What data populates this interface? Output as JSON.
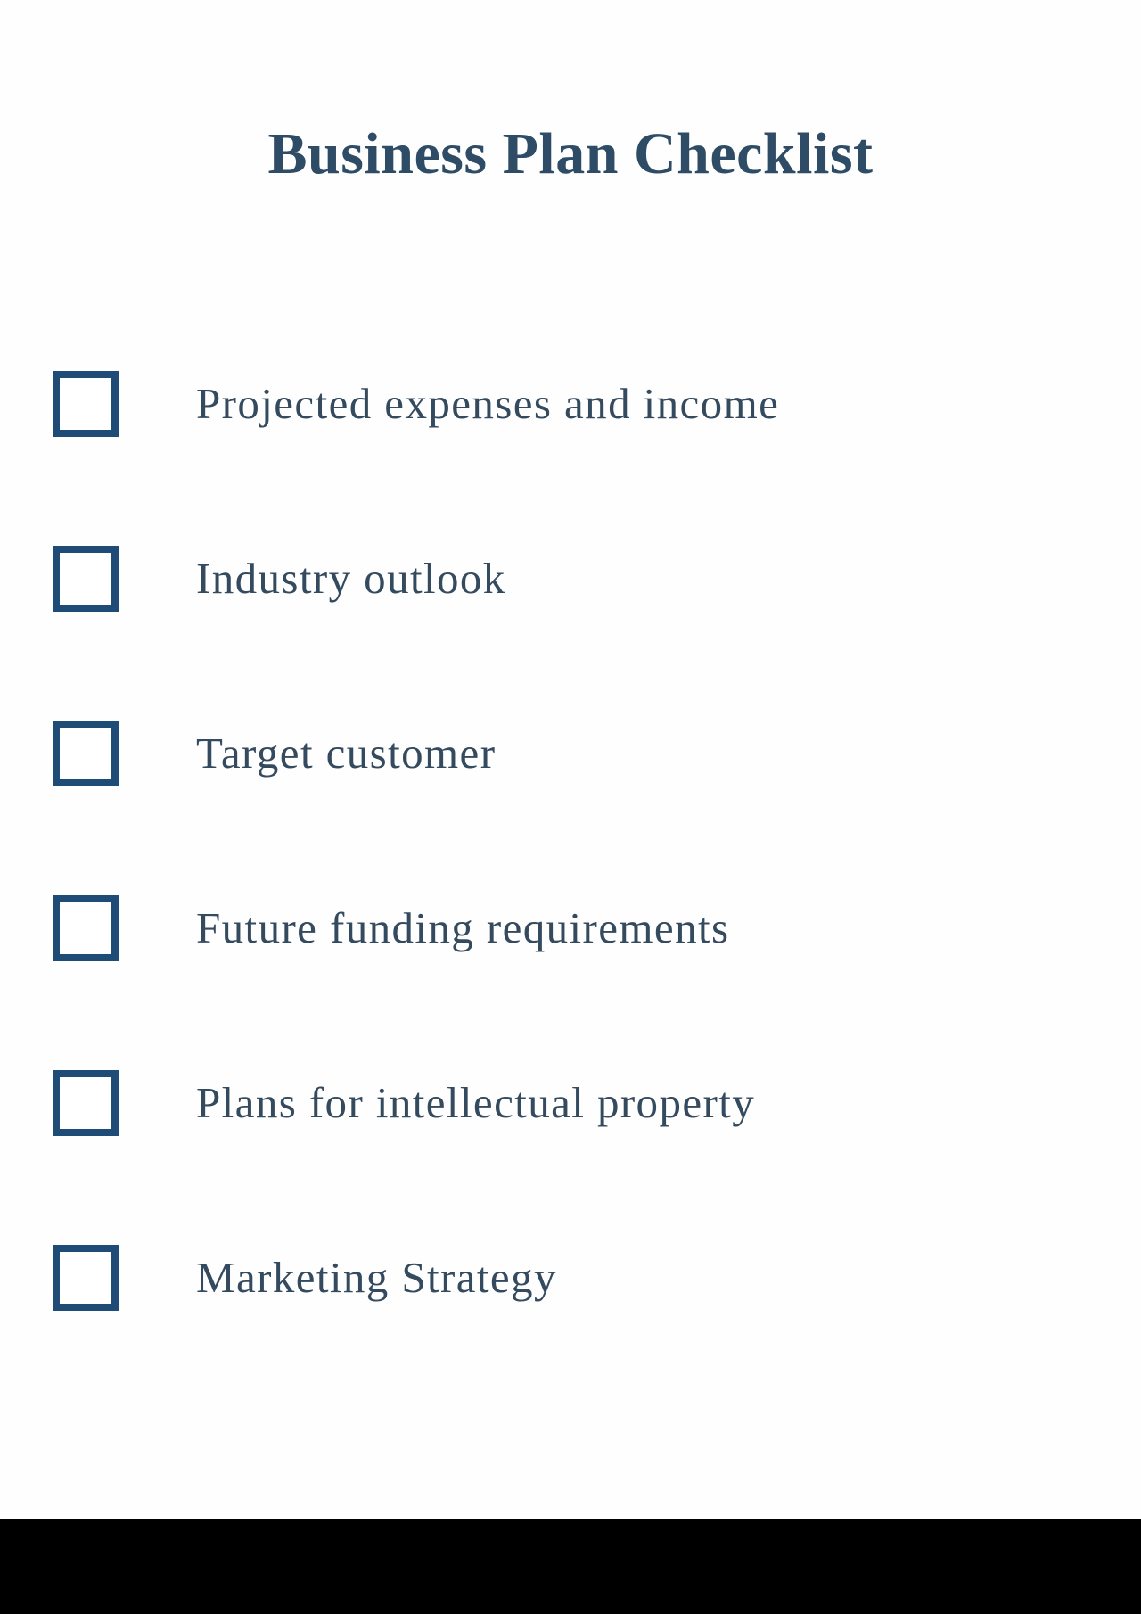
{
  "document": {
    "title": "Business Plan Checklist"
  },
  "checklist": {
    "items": [
      {
        "label": "Projected expenses and income",
        "checked": false
      },
      {
        "label": "Industry outlook",
        "checked": false
      },
      {
        "label": "Target customer",
        "checked": false
      },
      {
        "label": "Future funding requirements",
        "checked": false
      },
      {
        "label": "Plans for intellectual property",
        "checked": false
      },
      {
        "label": "Marketing Strategy",
        "checked": false
      }
    ]
  },
  "colors": {
    "title": "#2f4c66",
    "checkbox_border": "#1f4b77",
    "text": "#344a5e",
    "background": "#ffffff",
    "footer_bar": "#000000"
  }
}
